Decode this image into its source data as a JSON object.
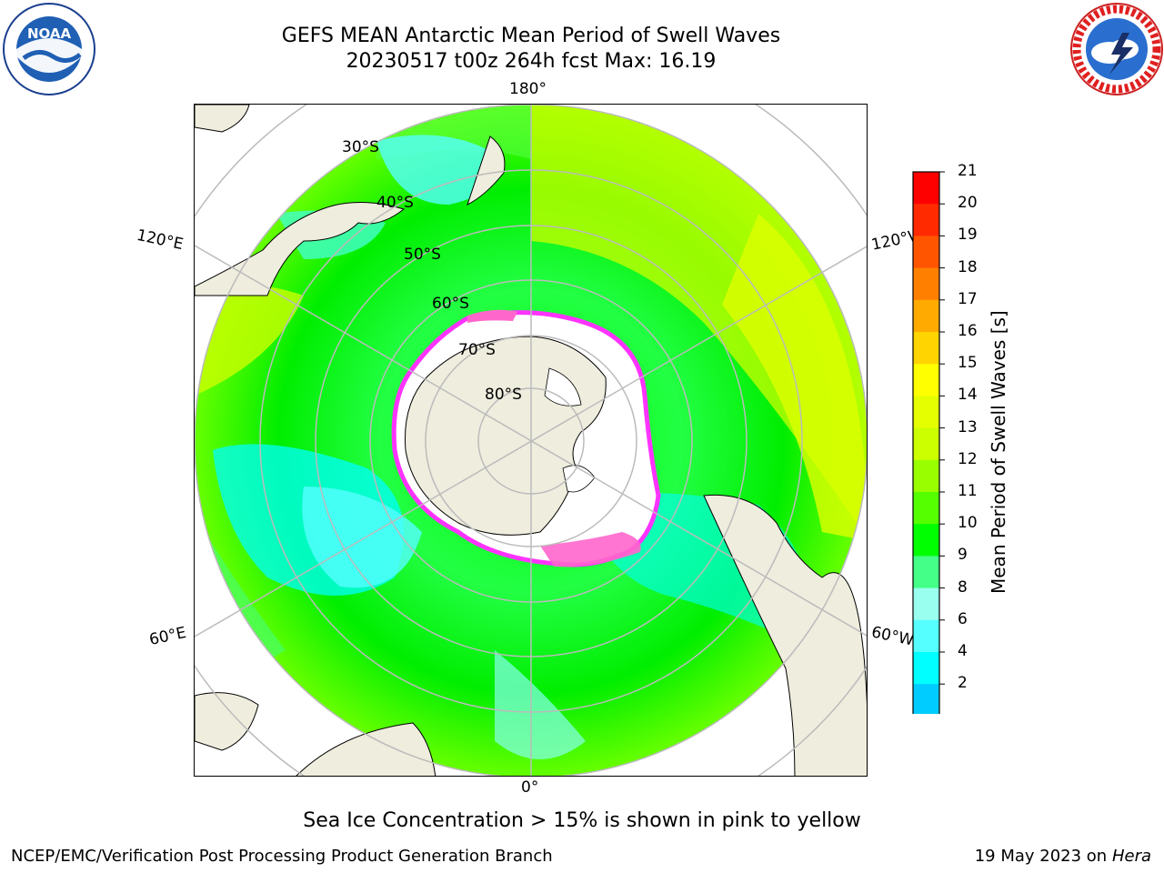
{
  "title": {
    "line1": "GEFS MEAN Antarctic Mean Period of Swell Waves",
    "line2": "20230517 t00z 264h fcst   Max: 16.19"
  },
  "logos": {
    "left": {
      "icon": "noaa-logo",
      "text": "NOAA"
    },
    "right": {
      "icon": "nws-logo",
      "text": "NATIONAL WEATHER SERVICE"
    }
  },
  "map": {
    "projection": "south-polar-stereographic",
    "longitude_labels": {
      "top": "180°",
      "bottom": "0°",
      "upper_left": "120°E",
      "upper_right": "120°W",
      "lower_left": "60°E",
      "lower_right": "60°W"
    },
    "latitude_labels": [
      "30°S",
      "40°S",
      "50°S",
      "60°S",
      "70°S",
      "80°S"
    ],
    "colors": {
      "land": "#efedde",
      "ocean_low": "#00ffff",
      "ocean_mid": "#00ff00",
      "ocean_high": "#ffff00",
      "sea_ice_edge": "#ff33ff",
      "grid": "#bbbbbb"
    }
  },
  "colorbar": {
    "label": "Mean Period of Swell Waves [s]",
    "ticks": [
      "21",
      "20",
      "19",
      "18",
      "17",
      "16",
      "15",
      "14",
      "13",
      "12",
      "11",
      "10",
      "9",
      "8",
      "6",
      "4",
      "2"
    ],
    "colors": [
      "#ff0000",
      "#ff2a00",
      "#ff5500",
      "#ff8000",
      "#ffaa00",
      "#ffd400",
      "#ffff00",
      "#e5ff00",
      "#ccff00",
      "#99ff00",
      "#55ff00",
      "#00ff00",
      "#44ff88",
      "#99ffee",
      "#55ffff",
      "#00ffff",
      "#00ccff",
      "#0077ff",
      "#0000ff"
    ]
  },
  "footer": {
    "note": "Sea Ice Concentration > 15% is shown in pink to yellow",
    "left": "NCEP/EMC/Verification Post Processing Product Generation Branch",
    "right_date": "19 May 2023 on",
    "right_host": "Hera"
  }
}
